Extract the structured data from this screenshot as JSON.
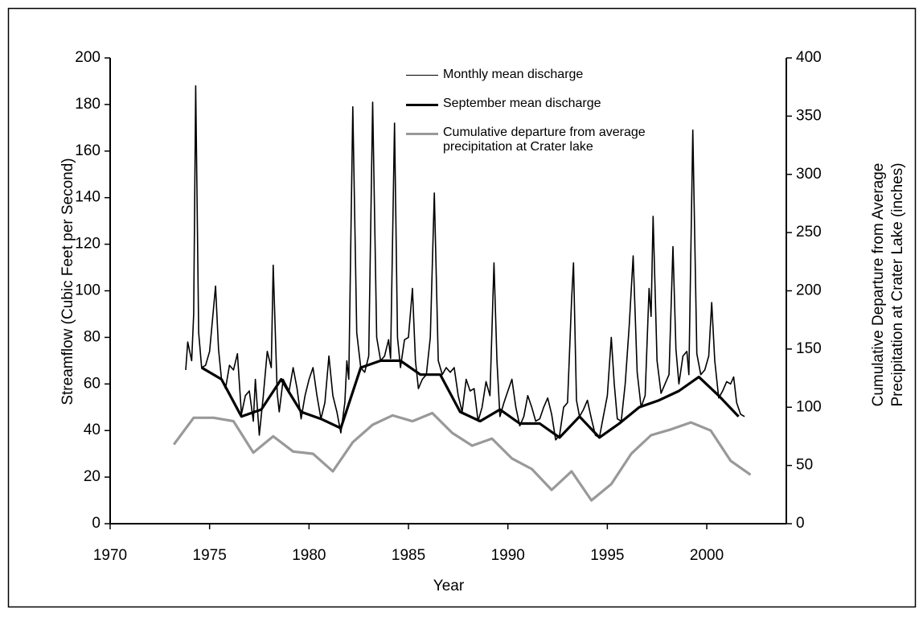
{
  "chart_data": {
    "type": "line",
    "x_label": "Year",
    "y_label": "Streamflow (Cubic Feet per Second)",
    "y2_label": "Cumulative Departure from Average Precipitation at Crater Lake (inches)",
    "xlim": [
      1970,
      2004
    ],
    "xticks": [
      1970,
      1975,
      1980,
      1985,
      1990,
      1995,
      2000
    ],
    "ylim": [
      0,
      200
    ],
    "yticks": [
      0,
      20,
      40,
      60,
      80,
      100,
      120,
      140,
      160,
      180,
      200
    ],
    "y2lim": [
      0,
      400
    ],
    "y2ticks": [
      0,
      50,
      100,
      150,
      200,
      250,
      300,
      350,
      400
    ],
    "series": [
      {
        "name": "Monthly mean discharge",
        "color": "#000000",
        "linewidth": 1.6,
        "axis": "y",
        "x": [
          1973.8,
          1973.9,
          1974.1,
          1974.2,
          1974.3,
          1974.45,
          1974.6,
          1974.8,
          1975.0,
          1975.15,
          1975.3,
          1975.45,
          1975.6,
          1975.8,
          1976.0,
          1976.2,
          1976.4,
          1976.6,
          1976.8,
          1977.0,
          1977.2,
          1977.3,
          1977.5,
          1977.7,
          1977.9,
          1978.1,
          1978.2,
          1978.4,
          1978.5,
          1978.7,
          1979.0,
          1979.2,
          1979.4,
          1979.6,
          1979.8,
          1980.0,
          1980.2,
          1980.4,
          1980.6,
          1980.8,
          1981.0,
          1981.2,
          1981.4,
          1981.6,
          1981.8,
          1981.9,
          1982.0,
          1982.2,
          1982.4,
          1982.6,
          1982.8,
          1983.0,
          1983.2,
          1983.4,
          1983.6,
          1983.8,
          1984.0,
          1984.1,
          1984.3,
          1984.45,
          1984.6,
          1984.8,
          1985.0,
          1985.2,
          1985.35,
          1985.5,
          1985.7,
          1985.9,
          1986.1,
          1986.3,
          1986.5,
          1986.7,
          1986.9,
          1987.1,
          1987.3,
          1987.5,
          1987.7,
          1987.9,
          1988.1,
          1988.3,
          1988.5,
          1988.7,
          1988.9,
          1989.1,
          1989.3,
          1989.45,
          1989.6,
          1989.8,
          1990.0,
          1990.2,
          1990.4,
          1990.6,
          1990.8,
          1991.0,
          1991.2,
          1991.4,
          1991.6,
          1991.8,
          1992.0,
          1992.2,
          1992.4,
          1992.6,
          1992.8,
          1993.0,
          1993.2,
          1993.3,
          1993.45,
          1993.6,
          1993.8,
          1994.0,
          1994.2,
          1994.4,
          1994.6,
          1994.8,
          1995.0,
          1995.2,
          1995.35,
          1995.5,
          1995.7,
          1995.9,
          1996.1,
          1996.3,
          1996.5,
          1996.7,
          1996.9,
          1997.1,
          1997.2,
          1997.3,
          1997.5,
          1997.7,
          1997.9,
          1998.1,
          1998.3,
          1998.45,
          1998.6,
          1998.8,
          1999.0,
          1999.1,
          1999.3,
          1999.5,
          1999.7,
          1999.9,
          2000.1,
          2000.25,
          2000.4,
          2000.6,
          2000.8,
          2001.0,
          2001.2,
          2001.35,
          2001.5,
          2001.7,
          2001.9
        ],
        "values": [
          66,
          78,
          70,
          90,
          188,
          82,
          67,
          68,
          74,
          88,
          102,
          75,
          62,
          58,
          68,
          66,
          73,
          47,
          55,
          57,
          44,
          62,
          38,
          55,
          74,
          67,
          111,
          56,
          48,
          62,
          57,
          67,
          58,
          45,
          55,
          62,
          67,
          55,
          45,
          52,
          72,
          55,
          48,
          39,
          52,
          70,
          62,
          179,
          82,
          67,
          65,
          72,
          181,
          80,
          70,
          72,
          79,
          71,
          172,
          80,
          67,
          79,
          80,
          101,
          70,
          58,
          62,
          64,
          80,
          142,
          70,
          64,
          67,
          65,
          67,
          55,
          48,
          62,
          57,
          58,
          44,
          50,
          61,
          55,
          112,
          70,
          46,
          52,
          57,
          62,
          50,
          42,
          46,
          55,
          50,
          44,
          45,
          50,
          54,
          47,
          36,
          38,
          50,
          52,
          96,
          112,
          53,
          46,
          49,
          53,
          45,
          38,
          37,
          46,
          55,
          80,
          60,
          45,
          44,
          60,
          85,
          115,
          65,
          50,
          55,
          101,
          89,
          132,
          70,
          56,
          60,
          64,
          119,
          75,
          60,
          72,
          74,
          64,
          169,
          73,
          64,
          66,
          72,
          95,
          70,
          54,
          57,
          61,
          60,
          63,
          52,
          47,
          46
        ]
      },
      {
        "name": "September mean discharge",
        "color": "#000000",
        "linewidth": 3.2,
        "axis": "y",
        "x": [
          1974.6,
          1975.6,
          1976.6,
          1977.6,
          1978.6,
          1979.6,
          1980.6,
          1981.6,
          1982.6,
          1983.6,
          1984.6,
          1985.6,
          1986.6,
          1987.6,
          1988.6,
          1989.6,
          1990.6,
          1991.6,
          1992.6,
          1993.6,
          1994.6,
          1995.6,
          1996.6,
          1997.6,
          1998.6,
          1999.6,
          2000.6,
          2001.6
        ],
        "values": [
          67,
          62,
          46,
          49,
          62,
          48,
          45,
          41,
          67,
          70,
          70,
          64,
          64,
          48,
          44,
          49,
          43,
          43,
          37,
          46,
          37,
          43,
          50,
          53,
          57,
          63,
          55,
          46
        ]
      },
      {
        "name": "Cumulative departure from average precipitation at Crater lake",
        "color": "#999999",
        "linewidth": 3.2,
        "axis": "y2",
        "x": [
          1973.2,
          1974.2,
          1975.2,
          1976.2,
          1977.2,
          1978.2,
          1979.2,
          1980.2,
          1981.2,
          1982.2,
          1983.2,
          1984.2,
          1985.2,
          1986.2,
          1987.2,
          1988.2,
          1989.2,
          1990.2,
          1991.2,
          1992.2,
          1993.2,
          1994.2,
          1995.2,
          1996.2,
          1997.2,
          1998.2,
          1999.2,
          2000.2,
          2001.2,
          2002.2
        ],
        "values": [
          68,
          91,
          91,
          88,
          61,
          75,
          62,
          60,
          45,
          70,
          85,
          93,
          88,
          95,
          78,
          67,
          73,
          56,
          47,
          29,
          45,
          20,
          34,
          60,
          76,
          81,
          87,
          80,
          54,
          42
        ]
      }
    ]
  }
}
